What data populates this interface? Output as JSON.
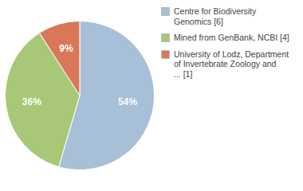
{
  "chart_data": {
    "type": "pie",
    "categories": [
      "Centre for Biodiversity\nGenomics [6]",
      "Mined from GenBank, NCBI [4]",
      "University of Lodz, Department\nof Invertebrate Zoology and\n... [1]"
    ],
    "values": [
      54,
      36,
      9
    ],
    "value_labels": [
      "54%",
      "36%",
      "9%"
    ],
    "colors": [
      "#a8bfd8",
      "#a8c878",
      "#d87858"
    ],
    "data_labels": true,
    "legend": "right"
  }
}
